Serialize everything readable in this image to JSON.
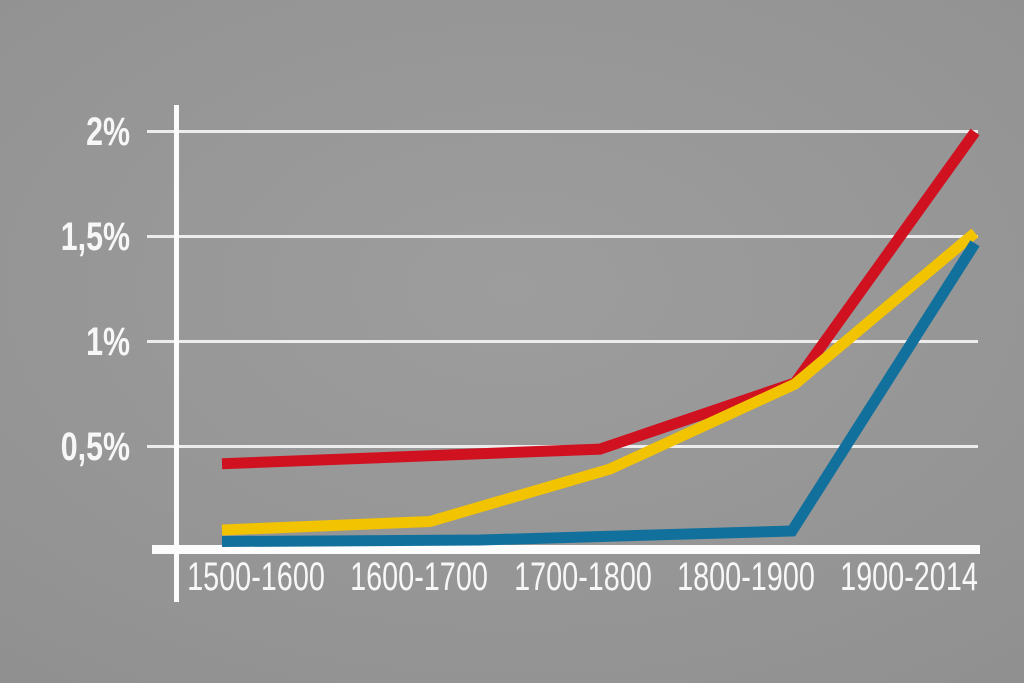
{
  "chart_data": {
    "type": "line",
    "title": "",
    "xlabel": "",
    "ylabel": "",
    "categories": [
      "1500-1600",
      "1600-1700",
      "1700-1800",
      "1800-1900",
      "1900-2014"
    ],
    "y_axis": {
      "unit": "%",
      "decimal_separator": ",",
      "range": [
        0,
        2.12
      ],
      "ticks": [
        {
          "label": "2%",
          "value": 2.0
        },
        {
          "label": "1,5%",
          "value": 1.5
        },
        {
          "label": "1%",
          "value": 1.0
        },
        {
          "label": "0,5%",
          "value": 0.5
        }
      ]
    },
    "grid": true,
    "legend": "none",
    "series": [
      {
        "name": "red-series",
        "color": "#d01120",
        "values_at_categories": [
          0.43,
          0.46,
          0.49,
          0.73,
          1.56
        ],
        "end_value": 2.0,
        "points": [
          {
            "x": 0.0,
            "y": 0.42
          },
          {
            "x": 0.502,
            "y": 0.49
          },
          {
            "x": 0.761,
            "y": 0.805
          },
          {
            "x": 1.0,
            "y": 2.0
          }
        ]
      },
      {
        "name": "yellow-series",
        "color": "#f2c300",
        "values_at_categories": [
          0.11,
          0.15,
          0.35,
          0.7,
          1.26
        ],
        "end_value": 1.52,
        "points": [
          {
            "x": 0.0,
            "y": 0.105
          },
          {
            "x": 0.276,
            "y": 0.145
          },
          {
            "x": 0.515,
            "y": 0.395
          },
          {
            "x": 0.761,
            "y": 0.8
          },
          {
            "x": 1.0,
            "y": 1.52
          }
        ]
      },
      {
        "name": "blue-series",
        "color": "#12709d",
        "values_at_categories": [
          0.05,
          0.05,
          0.05,
          0.09,
          0.98
        ],
        "end_value": 1.47,
        "points": [
          {
            "x": 0.0,
            "y": 0.05
          },
          {
            "x": 0.343,
            "y": 0.057
          },
          {
            "x": 0.757,
            "y": 0.1
          },
          {
            "x": 1.0,
            "y": 1.47
          }
        ]
      }
    ],
    "colors": {
      "background_gray": "#929292",
      "axis_white": "#fcfcfc",
      "gridline": "#ececec",
      "label_text": "#f7f7f7"
    }
  }
}
